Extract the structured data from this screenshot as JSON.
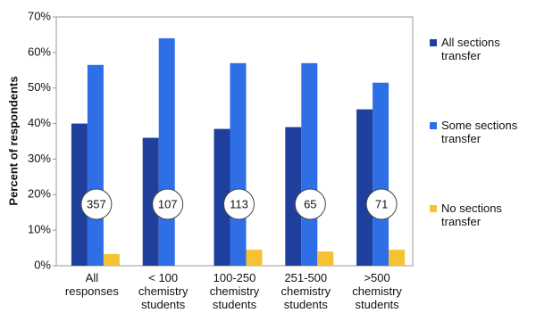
{
  "chart_data": {
    "type": "bar",
    "y_label": "Percent of respondents",
    "categories": [
      "All\nresponses",
      "< 100\nchemistry\nstudents",
      "100-250\nchemistry\nstudents",
      "251-500\nchemistry\nstudents",
      ">500\nchemistry\nstudents"
    ],
    "series": [
      {
        "name": "All sections\ntransfer",
        "color": "#1f3f9c",
        "values": [
          40,
          36,
          38.5,
          39,
          44
        ]
      },
      {
        "name": "Some sections\ntransfer",
        "color": "#2f6fe6",
        "values": [
          56.5,
          64,
          57,
          57,
          51.5
        ]
      },
      {
        "name": "No sections\ntransfer",
        "color": "#f4c232",
        "values": [
          3.3,
          0,
          4.5,
          4,
          4.5
        ]
      }
    ],
    "annotations": [
      "357",
      "107",
      "113",
      "65",
      "71"
    ],
    "ylim": [
      0,
      70
    ],
    "yticks": [
      {
        "value": 0,
        "label": "0%"
      },
      {
        "value": 10,
        "label": "10%"
      },
      {
        "value": 20,
        "label": "20%"
      },
      {
        "value": 30,
        "label": "30%"
      },
      {
        "value": 40,
        "label": "40%"
      },
      {
        "value": 50,
        "label": "50%"
      },
      {
        "value": 60,
        "label": "60%"
      },
      {
        "value": 70,
        "label": "70%"
      }
    ],
    "grid": false
  }
}
